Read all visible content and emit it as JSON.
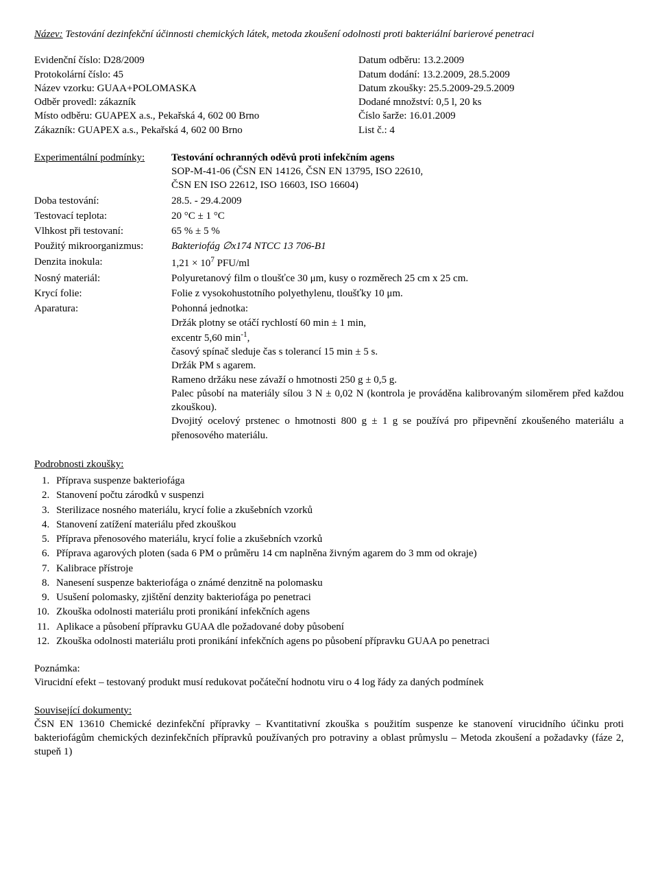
{
  "header": {
    "nazev_label": "Název:",
    "nazev_value": "Testování dezinfekční účinnosti chemických látek, metoda zkoušení odolnosti proti bakteriální barierové penetraci"
  },
  "meta_left": {
    "evidencni": "Evidenční číslo: D28/2009",
    "protokolarni": "Protokolární číslo: 45",
    "nazev_vzorku": "Název vzorku: GUAA+POLOMASKA",
    "odber_provedl": "Odběr provedl: zákazník",
    "misto_odberu": "Místo odběru: GUAPEX a.s., Pekařská 4, 602 00 Brno",
    "zakaznik": "Zákazník: GUAPEX a.s., Pekařská 4, 602 00 Brno"
  },
  "meta_right": {
    "datum_odberu": "Datum odběru: 13.2.2009",
    "datum_dodani": "Datum dodání: 13.2.2009, 28.5.2009",
    "datum_zkousky": "Datum zkoušky: 25.5.2009-29.5.2009",
    "dodane_mnozstvi": "Dodané množství: 0,5 l, 20 ks",
    "cislo_sarze": "Číslo šarže: 16.01.2009",
    "list": "List č.: 4"
  },
  "experiment": {
    "label_heading": "Experimentální podmínky:",
    "heading_value": "Testování ochranných oděvů proti infekčním agens",
    "sop_line1": "SOP-M-41-06 (ČSN EN 14126, ČSN EN 13795, ISO 22610,",
    "sop_line2": "ČSN EN ISO 22612, ISO 16603, ISO 16604)",
    "doba_label": "Doba testování:",
    "doba_value": "28.5. - 29.4.2009",
    "teplota_label": "Testovací teplota:",
    "teplota_value": "20 °C ± 1 °C",
    "vlhkost_label": "Vlhkost při testovaní:",
    "vlhkost_value": "65 % ± 5 %",
    "mikro_label": "Použitý mikroorganizmus:",
    "mikro_value_pre": "Bakteriofág ",
    "mikro_value_symbol": "∅",
    "mikro_value_post": "x174 NTCC 13 706-B1",
    "denzita_label": "Denzita inokula:",
    "denzita_value_pre": "1,21 × 10",
    "denzita_value_sup": "7",
    "denzita_value_post": " PFU/ml",
    "nosny_label": "Nosný materiál:",
    "nosny_value": "Polyuretanový film o tloušťce 30 μm, kusy o rozměrech 25 cm x 25 cm.",
    "kryci_label": "Krycí folie:",
    "kryci_value": "Folie z vysokohustotního polyethylenu, tloušťky 10 μm.",
    "aparatura_label": "Aparatura:",
    "apar_line1": "Pohonná jednotka:",
    "apar_line2": "Držák plotny se otáčí rychlostí 60 min ± 1 min,",
    "apar_line3_pre": "excentr 5,60 min",
    "apar_line3_sup": "-1",
    "apar_line3_post": ",",
    "apar_line4": "časový spínač sleduje čas s tolerancí 15 min ± 5 s.",
    "apar_line5": "Držák PM s agarem.",
    "apar_line6": "Rameno držáku nese závaží o hmotnosti 250 g ± 0,5 g.",
    "apar_line7": "Palec působí na materiály sílou 3 N ±  0,02 N (kontrola je prováděna kalibrovaným siloměrem před každou zkouškou).",
    "apar_line8": "Dvojitý ocelový prstenec o hmotnosti 800 g ± 1 g se používá pro připevnění zkoušeného materiálu a přenosového materiálu."
  },
  "steps": {
    "heading": "Podrobnosti zkoušky:",
    "items": [
      "Příprava suspenze bakteriofága",
      "Stanovení počtu zárodků v suspenzi",
      "Sterilizace nosného materiálu, krycí folie a zkušebních vzorků",
      "Stanovení zatížení materiálu před zkouškou",
      "Příprava přenosového materiálu, krycí folie a zkušebních vzorků",
      "Příprava agarových ploten (sada 6 PM o průměru 14 cm naplněna živným agarem do 3 mm od okraje)",
      "Kalibrace přístroje",
      "Nanesení suspenze bakteriofága o známé denzitně na polomasku",
      "Usušení polomasky, zjištění denzity bakteriofága po penetraci",
      "Zkouška odolnosti materiálu proti pronikání infekčních agens",
      "Aplikace a působení přípravku GUAA dle požadované doby působení",
      "Zkouška odolnosti materiálu proti pronikání infekčních agens po působení přípravku GUAA po penetraci"
    ]
  },
  "note": {
    "heading": "Poznámka:",
    "text": "Virucidní efekt – testovaný produkt musí redukovat počáteční hodnotu viru o 4 log řády za daných podmínek"
  },
  "related": {
    "heading": "Související dokumenty:",
    "text": "ČSN EN 13610 Chemické dezinfekční přípravky – Kvantitativní zkouška s použitím suspenze ke stanovení virucidního účinku proti bakteriofágům chemických dezinfekčních přípravků používaných pro potraviny a oblast průmyslu – Metoda zkoušení a požadavky (fáze 2, stupeň 1)"
  }
}
